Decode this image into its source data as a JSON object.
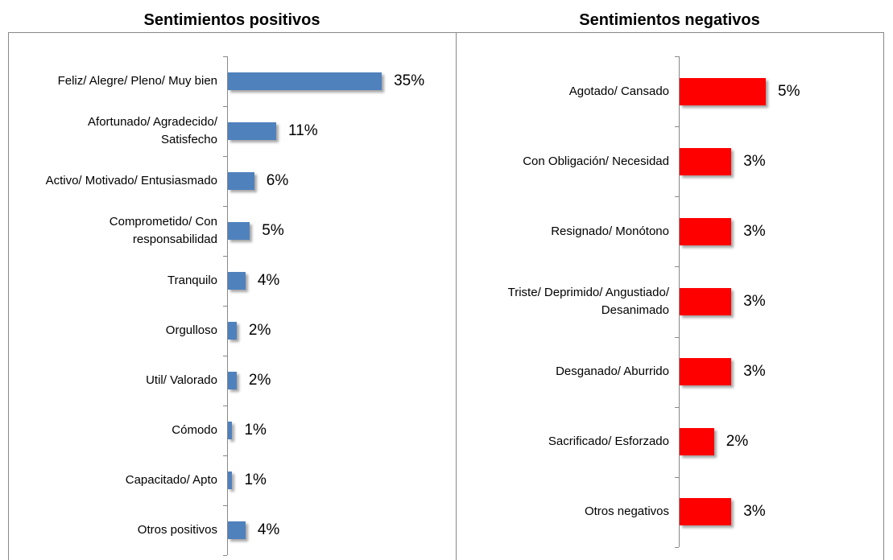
{
  "chart_data": [
    {
      "type": "bar",
      "orientation": "horizontal",
      "title": "Sentimientos positivos",
      "color": "#4f81bd",
      "categories": [
        "Feliz/ Alegre/ Pleno/ Muy bien",
        "Afortunado/ Agradecido/ Satisfecho",
        "Activo/ Motivado/ Entusiasmado",
        "Comprometido/ Con responsabilidad",
        "Tranquilo",
        "Orgulloso",
        "Util/ Valorado",
        "Cómodo",
        "Capacitado/ Apto",
        "Otros positivos"
      ],
      "values": [
        35,
        11,
        6,
        5,
        4,
        2,
        2,
        1,
        1,
        4
      ],
      "value_labels": [
        "35%",
        "11%",
        "6%",
        "5%",
        "4%",
        "2%",
        "2%",
        "1%",
        "1%",
        "4%"
      ]
    },
    {
      "type": "bar",
      "orientation": "horizontal",
      "title": "Sentimientos negativos",
      "color": "#ff0000",
      "categories": [
        "Agotado/ Cansado",
        "Con Obligación/ Necesidad",
        "Resignado/ Monótono",
        "Triste/ Deprimido/ Angustiado/ Desanimado",
        "Desganado/ Aburrido",
        "Sacrificado/ Esforzado",
        "Otros negativos"
      ],
      "values": [
        5,
        3,
        3,
        3,
        3,
        2,
        3
      ],
      "value_labels": [
        "5%",
        "3%",
        "3%",
        "3%",
        "3%",
        "2%",
        "3%"
      ]
    }
  ]
}
